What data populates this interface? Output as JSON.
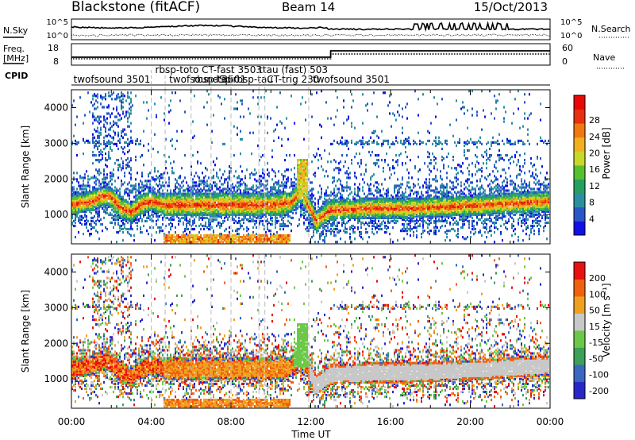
{
  "header": {
    "radar": "Blackstone (fitACF)",
    "beam": "Beam 14",
    "date": "15/Oct/2013"
  },
  "status_panels": {
    "nsky_label": "N.Sky",
    "nsky_ticks": [
      "10^5",
      "10^0"
    ],
    "nsearch_label": "N.Search",
    "nsearch_ticks": [
      "10^5",
      "10^0"
    ],
    "freq_label": "Freq.",
    "freq_unit": "[MHz]",
    "freq_ticks": [
      "18",
      "8"
    ],
    "nave_label": "Nave",
    "nave_ticks": [
      "60",
      "0"
    ],
    "cpid_label": "CPID"
  },
  "cpid_labels": [
    {
      "text": "twofsound 3501",
      "hour": 0.1,
      "row": 1
    },
    {
      "text": "rbsp-toto CT-fast 3503",
      "hour": 4.2,
      "row": 0
    },
    {
      "text": "twofsound 3501",
      "hour": 4.9,
      "row": 1
    },
    {
      "text": "rbsp-tau",
      "hour": 6.1,
      "row": 1
    },
    {
      "text": "Sp",
      "hour": 7.4,
      "row": 1
    },
    {
      "text": "rbsp-tau",
      "hour": 8.1,
      "row": 1
    },
    {
      "text": "ttau (fast) 503",
      "hour": 9.4,
      "row": 0
    },
    {
      "text": "CT-trig 230",
      "hour": 9.8,
      "row": 1
    },
    {
      "text": "twofsound 3501",
      "hour": 12.1,
      "row": 1
    }
  ],
  "cpid_boundaries_hours": [
    4.0,
    4.7,
    6.0,
    7.0,
    8.0,
    9.4,
    9.7,
    11.9
  ],
  "chart_data": [
    {
      "type": "heatmap",
      "quantity": "power",
      "xlabel": "",
      "ylabel": "Slant Range [km]",
      "xlim_hours": [
        0,
        24
      ],
      "ylim_km": [
        180,
        4500
      ],
      "yticks": [
        1000,
        2000,
        3000,
        4000
      ],
      "colorbar": {
        "label": "Power [dB]",
        "ticks": [
          "4",
          "8",
          "12",
          "16",
          "20",
          "24",
          "28"
        ],
        "colors": [
          "#1010e8",
          "#2858c8",
          "#2c8fa0",
          "#26a060",
          "#58c030",
          "#c8d828",
          "#f0b020",
          "#f07810",
          "#e83010",
          "#e80808"
        ]
      },
      "band_center_km": [
        [
          0,
          1250
        ],
        [
          1,
          1350
        ],
        [
          1.6,
          1500
        ],
        [
          2.0,
          1450
        ],
        [
          2.5,
          1150
        ],
        [
          3.0,
          1050
        ],
        [
          3.5,
          1250
        ],
        [
          4.0,
          1350
        ],
        [
          4.7,
          1250
        ],
        [
          6,
          1250
        ],
        [
          8,
          1250
        ],
        [
          10,
          1250
        ],
        [
          11.0,
          1300
        ],
        [
          11.5,
          1600
        ],
        [
          11.8,
          1350
        ],
        [
          12.3,
          800
        ],
        [
          13,
          1100
        ],
        [
          15,
          1150
        ],
        [
          17,
          1150
        ],
        [
          19,
          1200
        ],
        [
          21,
          1250
        ],
        [
          22.5,
          1300
        ],
        [
          24,
          1350
        ]
      ]
    },
    {
      "type": "heatmap",
      "quantity": "velocity",
      "xlabel": "Time UT",
      "ylabel": "Slant Range [km]",
      "xlim_hours": [
        0,
        24
      ],
      "ylim_km": [
        180,
        4500
      ],
      "xticks": [
        "00:00",
        "04:00",
        "08:00",
        "12:00",
        "16:00",
        "20:00",
        "00:00"
      ],
      "yticks": [
        1000,
        2000,
        3000,
        4000
      ],
      "colorbar": {
        "label": "Velocity [m s⁻¹]",
        "ticks": [
          "200",
          "100",
          "50",
          "15",
          "-15",
          "-50",
          "-100",
          "-200"
        ],
        "colors": [
          "#2828c8",
          "#3a68c0",
          "#3ca058",
          "#6cc848",
          "#c8c8c8",
          "#f0a020",
          "#f06010",
          "#e81010"
        ]
      }
    }
  ]
}
